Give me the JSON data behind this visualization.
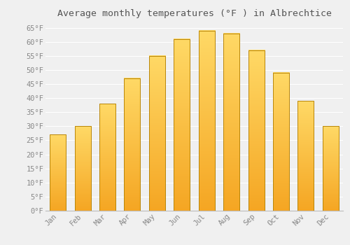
{
  "title": "Average monthly temperatures (°F ) in Albrechtice",
  "months": [
    "Jan",
    "Feb",
    "Mar",
    "Apr",
    "May",
    "Jun",
    "Jul",
    "Aug",
    "Sep",
    "Oct",
    "Nov",
    "Dec"
  ],
  "values": [
    27,
    30,
    38,
    47,
    55,
    61,
    64,
    63,
    57,
    49,
    39,
    30
  ],
  "bar_color_bottom": "#F5A623",
  "bar_color_top": "#FFD966",
  "bar_edge_color": "#B8860B",
  "background_color": "#F0F0F0",
  "grid_color": "#FFFFFF",
  "label_color": "#888888",
  "title_color": "#555555",
  "ylim": [
    0,
    67
  ],
  "yticks": [
    0,
    5,
    10,
    15,
    20,
    25,
    30,
    35,
    40,
    45,
    50,
    55,
    60,
    65
  ],
  "title_fontsize": 9.5,
  "tick_fontsize": 7.5,
  "bar_width": 0.65
}
